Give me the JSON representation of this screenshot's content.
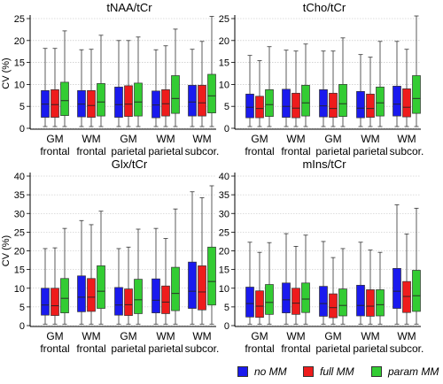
{
  "colors": {
    "no_mm": "#1a1aee",
    "full_mm": "#ee1c1c",
    "param_mm": "#33cc33"
  },
  "legend": {
    "no_mm": "no MM",
    "full_mm": "full MM",
    "param_mm": "param MM"
  },
  "chart_data": [
    {
      "type": "box",
      "title": "tNAA/tCr",
      "ylabel": "CV (%)",
      "ylim": [
        0,
        25
      ],
      "yticks": [
        0,
        5,
        10,
        15,
        20,
        25
      ],
      "grid": true,
      "categories": [
        [
          "GM",
          "frontal"
        ],
        [
          "WM",
          "frontal"
        ],
        [
          "GM",
          "parietal"
        ],
        [
          "WM",
          "parietal"
        ],
        [
          "WM",
          "subcor."
        ]
      ],
      "series": [
        {
          "name": "no MM",
          "boxes": [
            {
              "min": 0.4,
              "q1": 2.5,
              "median": 5.5,
              "q3": 8.6,
              "max": 18.2
            },
            {
              "min": 0.4,
              "q1": 2.6,
              "median": 5.5,
              "q3": 8.6,
              "max": 17.9
            },
            {
              "min": 0.4,
              "q1": 2.5,
              "median": 5.4,
              "q3": 9.4,
              "max": 20.0
            },
            {
              "min": 0.4,
              "q1": 2.4,
              "median": 5.3,
              "q3": 8.5,
              "max": 17.9
            },
            {
              "min": 0.4,
              "q1": 2.8,
              "median": 6.0,
              "q3": 9.8,
              "max": 18.0
            }
          ]
        },
        {
          "name": "full MM",
          "boxes": [
            {
              "min": 0.4,
              "q1": 2.5,
              "median": 5.4,
              "q3": 8.8,
              "max": 18.2
            },
            {
              "min": 0.4,
              "q1": 2.5,
              "median": 5.2,
              "q3": 8.6,
              "max": 18.0
            },
            {
              "min": 0.4,
              "q1": 2.7,
              "median": 5.5,
              "q3": 9.7,
              "max": 20.0
            },
            {
              "min": 0.4,
              "q1": 2.8,
              "median": 5.6,
              "q3": 8.8,
              "max": 18.8
            },
            {
              "min": 0.4,
              "q1": 2.8,
              "median": 5.8,
              "q3": 9.8,
              "max": 19.8
            }
          ]
        },
        {
          "name": "param MM",
          "boxes": [
            {
              "min": 0.4,
              "q1": 2.9,
              "median": 6.3,
              "q3": 10.5,
              "max": 22.2
            },
            {
              "min": 0.4,
              "q1": 2.8,
              "median": 6.0,
              "q3": 10.2,
              "max": 21.2
            },
            {
              "min": 0.4,
              "q1": 2.8,
              "median": 6.0,
              "q3": 10.3,
              "max": 20.8
            },
            {
              "min": 0.4,
              "q1": 3.4,
              "median": 6.8,
              "q3": 12.0,
              "max": 22.6
            },
            {
              "min": 0.4,
              "q1": 3.5,
              "median": 7.4,
              "q3": 12.3,
              "max": 25.5
            }
          ]
        }
      ]
    },
    {
      "type": "box",
      "title": "tCho/tCr",
      "ylim": [
        0,
        25
      ],
      "yticks": [
        0,
        5,
        10,
        15,
        20,
        25
      ],
      "grid": true,
      "categories": [
        [
          "GM",
          "frontal"
        ],
        [
          "WM",
          "frontal"
        ],
        [
          "GM",
          "parietal"
        ],
        [
          "WM",
          "parietal"
        ],
        [
          "WM",
          "subcor."
        ]
      ],
      "series": [
        {
          "name": "no MM",
          "boxes": [
            {
              "min": 0.4,
              "q1": 2.4,
              "median": 4.8,
              "q3": 7.8,
              "max": 16.6
            },
            {
              "min": 0.4,
              "q1": 2.5,
              "median": 5.0,
              "q3": 8.9,
              "max": 17.8
            },
            {
              "min": 0.4,
              "q1": 2.6,
              "median": 5.1,
              "q3": 8.8,
              "max": 17.6
            },
            {
              "min": 0.4,
              "q1": 2.4,
              "median": 4.6,
              "q3": 8.4,
              "max": 16.8
            },
            {
              "min": 0.4,
              "q1": 2.8,
              "median": 5.5,
              "q3": 9.6,
              "max": 19.8
            }
          ]
        },
        {
          "name": "full MM",
          "boxes": [
            {
              "min": 0.4,
              "q1": 2.4,
              "median": 4.5,
              "q3": 7.3,
              "max": 15.4
            },
            {
              "min": 0.4,
              "q1": 2.4,
              "median": 4.6,
              "q3": 8.0,
              "max": 17.6
            },
            {
              "min": 0.4,
              "q1": 2.5,
              "median": 4.5,
              "q3": 8.0,
              "max": 17.6
            },
            {
              "min": 0.4,
              "q1": 2.5,
              "median": 4.5,
              "q3": 7.8,
              "max": 16.2
            },
            {
              "min": 0.4,
              "q1": 2.6,
              "median": 4.8,
              "q3": 9.0,
              "max": 18.0
            }
          ]
        },
        {
          "name": "param MM",
          "boxes": [
            {
              "min": 0.4,
              "q1": 2.7,
              "median": 5.4,
              "q3": 8.8,
              "max": 18.6
            },
            {
              "min": 0.4,
              "q1": 2.8,
              "median": 5.8,
              "q3": 9.8,
              "max": 19.2
            },
            {
              "min": 0.4,
              "q1": 2.7,
              "median": 5.6,
              "q3": 10.0,
              "max": 20.6
            },
            {
              "min": 0.4,
              "q1": 2.8,
              "median": 5.8,
              "q3": 9.4,
              "max": 19.8
            },
            {
              "min": 0.4,
              "q1": 3.4,
              "median": 6.8,
              "q3": 12.0,
              "max": 25.6
            }
          ]
        }
      ]
    },
    {
      "type": "box",
      "title": "Glx/tCr",
      "ylabel": "CV (%)",
      "ylim": [
        0,
        40
      ],
      "yticks": [
        0,
        5,
        10,
        15,
        20,
        25,
        30,
        35,
        40
      ],
      "grid": true,
      "categories": [
        [
          "GM",
          "frontal"
        ],
        [
          "WM",
          "frontal"
        ],
        [
          "GM",
          "parietal"
        ],
        [
          "WM",
          "parietal"
        ],
        [
          "WM",
          "subcor."
        ]
      ],
      "series": [
        {
          "name": "no MM",
          "boxes": [
            {
              "min": 0.4,
              "q1": 2.8,
              "median": 5.5,
              "q3": 10.0,
              "max": 20.6
            },
            {
              "min": 0.4,
              "q1": 3.7,
              "median": 7.6,
              "q3": 13.3,
              "max": 28.1
            },
            {
              "min": 0.4,
              "q1": 2.8,
              "median": 5.5,
              "q3": 10.2,
              "max": 20.6
            },
            {
              "min": 0.4,
              "q1": 3.4,
              "median": 6.8,
              "q3": 12.5,
              "max": 26.0
            },
            {
              "min": 0.4,
              "q1": 4.6,
              "median": 9.2,
              "q3": 17.0,
              "max": 35.8
            }
          ]
        },
        {
          "name": "full MM",
          "boxes": [
            {
              "min": 0.4,
              "q1": 2.7,
              "median": 5.3,
              "q3": 10.0,
              "max": 20.8
            },
            {
              "min": 0.4,
              "q1": 3.8,
              "median": 7.6,
              "q3": 12.6,
              "max": 27.0
            },
            {
              "min": 0.4,
              "q1": 2.7,
              "median": 5.6,
              "q3": 9.8,
              "max": 21.0
            },
            {
              "min": 0.4,
              "q1": 3.2,
              "median": 6.3,
              "q3": 10.6,
              "max": 23.3
            },
            {
              "min": 0.4,
              "q1": 4.2,
              "median": 9.0,
              "q3": 16.0,
              "max": 34.2
            }
          ]
        },
        {
          "name": "param MM",
          "boxes": [
            {
              "min": 0.4,
              "q1": 3.4,
              "median": 7.3,
              "q3": 12.6,
              "max": 26.0
            },
            {
              "min": 0.4,
              "q1": 4.6,
              "median": 9.2,
              "q3": 16.0,
              "max": 30.6
            },
            {
              "min": 0.4,
              "q1": 3.2,
              "median": 6.9,
              "q3": 12.4,
              "max": 25.8
            },
            {
              "min": 0.4,
              "q1": 4.0,
              "median": 8.6,
              "q3": 15.6,
              "max": 31.2
            },
            {
              "min": 0.4,
              "q1": 5.5,
              "median": 11.8,
              "q3": 21.0,
              "max": 37.4
            }
          ]
        }
      ]
    },
    {
      "type": "box",
      "title": "mIns/tCr",
      "ylim": [
        0,
        40
      ],
      "yticks": [
        0,
        5,
        10,
        15,
        20,
        25,
        30,
        35,
        40
      ],
      "grid": true,
      "categories": [
        [
          "GM",
          "frontal"
        ],
        [
          "WM",
          "frontal"
        ],
        [
          "GM",
          "parietal"
        ],
        [
          "WM",
          "parietal"
        ],
        [
          "WM",
          "subcor."
        ]
      ],
      "series": [
        {
          "name": "no MM",
          "boxes": [
            {
              "min": 0.4,
              "q1": 2.3,
              "median": 5.9,
              "q3": 10.3,
              "max": 22.3
            },
            {
              "min": 0.4,
              "q1": 3.4,
              "median": 6.9,
              "q3": 11.4,
              "max": 24.6
            },
            {
              "min": 0.4,
              "q1": 2.5,
              "median": 5.9,
              "q3": 10.5,
              "max": 22.5
            },
            {
              "min": 0.4,
              "q1": 2.6,
              "median": 5.4,
              "q3": 10.8,
              "max": 22.3
            },
            {
              "min": 0.4,
              "q1": 4.6,
              "median": 9.2,
              "q3": 15.3,
              "max": 32.3
            }
          ]
        },
        {
          "name": "full MM",
          "boxes": [
            {
              "min": 0.4,
              "q1": 2.2,
              "median": 5.2,
              "q3": 9.3,
              "max": 19.6
            },
            {
              "min": 0.4,
              "q1": 3.0,
              "median": 6.0,
              "q3": 10.0,
              "max": 21.2
            },
            {
              "min": 0.4,
              "q1": 2.1,
              "median": 4.8,
              "q3": 8.5,
              "max": 18.2
            },
            {
              "min": 0.4,
              "q1": 2.5,
              "median": 5.2,
              "q3": 9.6,
              "max": 20.2
            },
            {
              "min": 0.4,
              "q1": 3.5,
              "median": 7.8,
              "q3": 11.8,
              "max": 24.5
            }
          ]
        },
        {
          "name": "param MM",
          "boxes": [
            {
              "min": 0.4,
              "q1": 3.0,
              "median": 6.2,
              "q3": 11.0,
              "max": 22.2
            },
            {
              "min": 0.4,
              "q1": 3.5,
              "median": 7.1,
              "q3": 11.4,
              "max": 24.2
            },
            {
              "min": 0.4,
              "q1": 2.6,
              "median": 5.4,
              "q3": 9.8,
              "max": 20.6
            },
            {
              "min": 0.4,
              "q1": 2.6,
              "median": 5.6,
              "q3": 9.6,
              "max": 19.6
            },
            {
              "min": 0.4,
              "q1": 3.8,
              "median": 8.0,
              "q3": 14.8,
              "max": 31.4
            }
          ]
        }
      ]
    }
  ]
}
